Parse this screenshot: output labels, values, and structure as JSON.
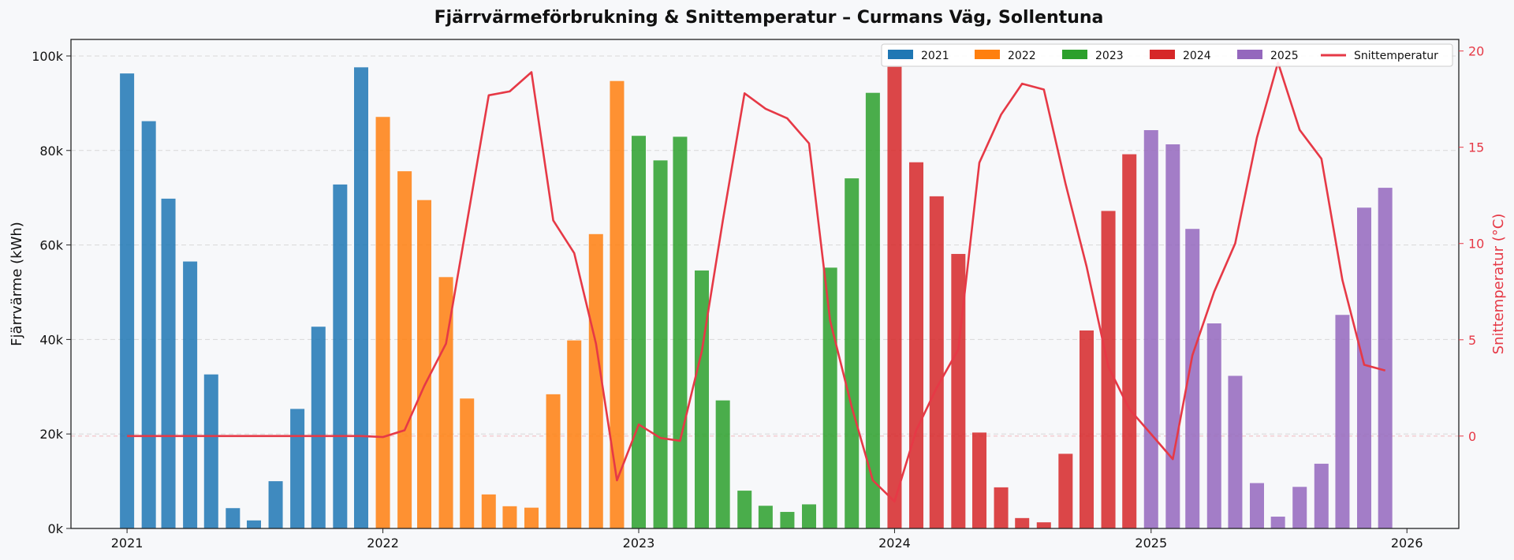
{
  "chart_data": {
    "type": "bar",
    "title": "Fjärrvärmeförbrukning & Snittemperatur – Curmans Väg, Sollentuna",
    "xlabel": "",
    "ylabel": "Fjärrvärme (kWh)",
    "y2label": "Snittemperatur (°C)",
    "x_tick_labels": [
      "2021",
      "2022",
      "2023",
      "2024",
      "2025",
      "2026"
    ],
    "y_tick_labels": [
      "0k",
      "20k",
      "40k",
      "60k",
      "80k",
      "100k"
    ],
    "y2_tick_labels": [
      "0",
      "5",
      "10",
      "15",
      "20"
    ],
    "ylim": [
      0,
      103500
    ],
    "y2lim": [
      -4.8,
      20.6
    ],
    "xlim": [
      "2020-10-13",
      "2026-03-16"
    ],
    "grid": true,
    "legend_position": "top-right",
    "months": [
      "2021-01",
      "2021-02",
      "2021-03",
      "2021-04",
      "2021-05",
      "2021-06",
      "2021-07",
      "2021-08",
      "2021-09",
      "2021-10",
      "2021-11",
      "2021-12",
      "2022-01",
      "2022-02",
      "2022-03",
      "2022-04",
      "2022-05",
      "2022-06",
      "2022-07",
      "2022-08",
      "2022-09",
      "2022-10",
      "2022-11",
      "2022-12",
      "2023-01",
      "2023-02",
      "2023-03",
      "2023-04",
      "2023-05",
      "2023-06",
      "2023-07",
      "2023-08",
      "2023-09",
      "2023-10",
      "2023-11",
      "2023-12",
      "2024-01",
      "2024-02",
      "2024-03",
      "2024-04",
      "2024-05",
      "2024-06",
      "2024-07",
      "2024-08",
      "2024-09",
      "2024-10",
      "2024-11",
      "2024-12",
      "2025-01",
      "2025-02",
      "2025-03",
      "2025-04",
      "2025-05",
      "2025-06",
      "2025-07",
      "2025-08",
      "2025-09",
      "2025-10",
      "2025-11",
      "2025-12"
    ],
    "series": [
      {
        "name": "2021",
        "kind": "bar",
        "color": "#1f77b4",
        "values": [
          96300,
          86200,
          69800,
          56500,
          32600,
          4300,
          1700,
          10000,
          25300,
          42700,
          72800,
          97600
        ]
      },
      {
        "name": "2022",
        "kind": "bar",
        "color": "#ff7f0e",
        "values": [
          87100,
          75600,
          69500,
          53200,
          27500,
          7200,
          4700,
          4400,
          28400,
          39800,
          62300,
          94700
        ]
      },
      {
        "name": "2023",
        "kind": "bar",
        "color": "#2ca02c",
        "values": [
          83100,
          77900,
          82900,
          54600,
          27100,
          8000,
          4800,
          3500,
          5100,
          55200,
          74100,
          92200
        ]
      },
      {
        "name": "2024",
        "kind": "bar",
        "color": "#d62728",
        "values": [
          97700,
          77500,
          70300,
          58100,
          20300,
          8700,
          2200,
          1300,
          15800,
          41900,
          67200,
          79200
        ]
      },
      {
        "name": "2025",
        "kind": "bar",
        "color": "#9467bd",
        "values": [
          84300,
          81300,
          63400,
          43400,
          32300,
          9600,
          2500,
          8800,
          13700,
          45200,
          67900,
          72100
        ]
      },
      {
        "name": "Snittemperatur",
        "kind": "line",
        "axis": "right",
        "color": "#e63946",
        "values": [
          0,
          0,
          0,
          0,
          0,
          0,
          0,
          0,
          0,
          0,
          0,
          0,
          -0.05,
          0.3,
          2.6,
          4.8,
          11.1,
          17.7,
          17.9,
          18.9,
          11.2,
          9.5,
          4.8,
          -2.3,
          0.6,
          -0.1,
          -0.25,
          4.4,
          11.2,
          17.8,
          17.0,
          16.5,
          15.2,
          6.0,
          1.5,
          -2.3,
          -3.4,
          0.3,
          2.5,
          4.5,
          14.2,
          16.7,
          18.3,
          18.0,
          13.1,
          8.8,
          3.6,
          1.4,
          0.1,
          -1.2,
          4.2,
          7.5,
          10.0,
          15.5,
          19.4,
          15.9,
          14.4,
          8.1,
          3.7,
          3.4
        ]
      }
    ]
  }
}
